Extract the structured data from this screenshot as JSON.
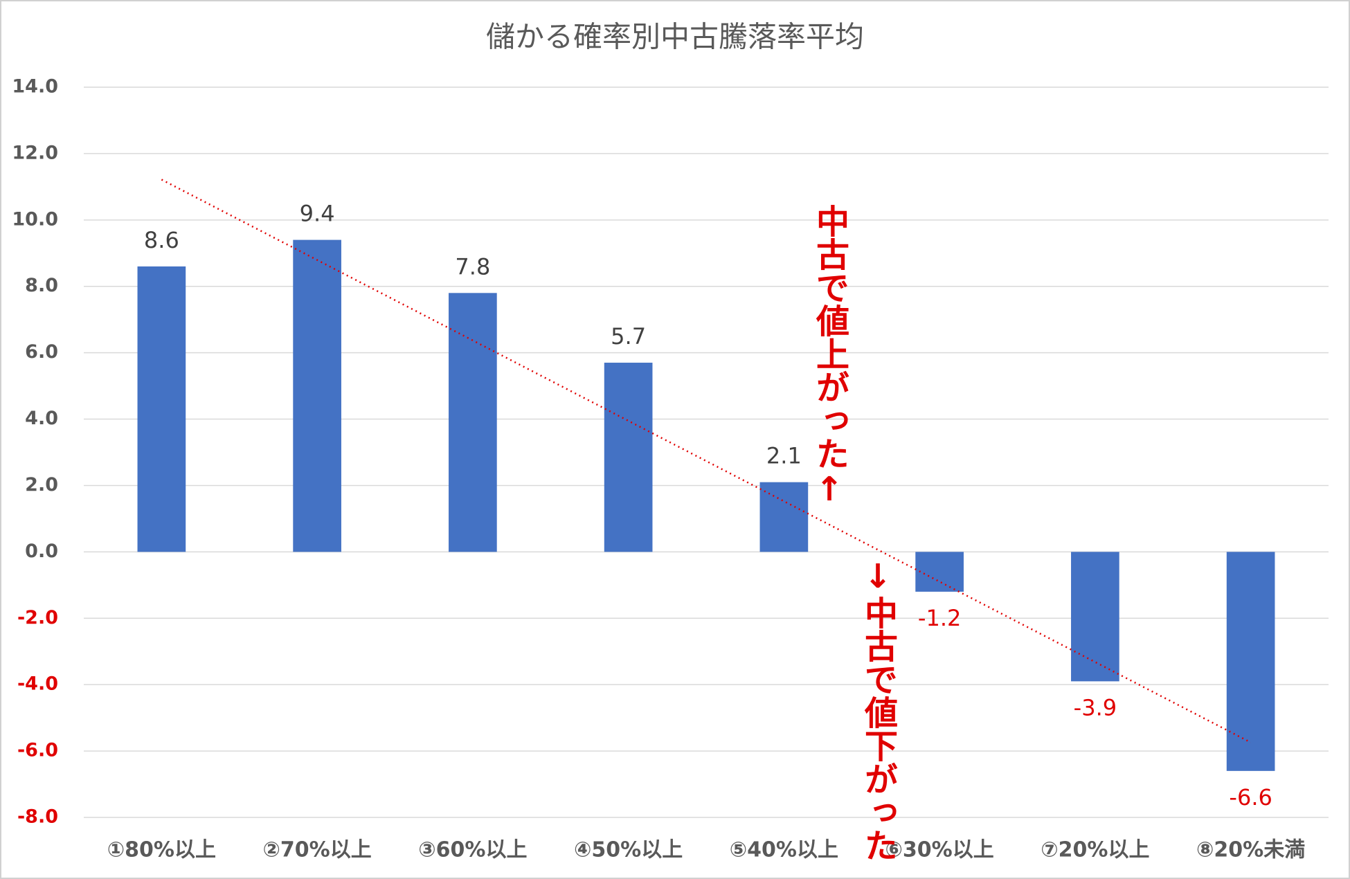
{
  "chart_data": {
    "type": "bar",
    "title": "儲かる確率別中古騰落率平均",
    "categories": [
      "①80%以上",
      "②70%以上",
      "③60%以上",
      "④50%以上",
      "⑤40%以上",
      "⑥30%以上",
      "⑦20%以上",
      "⑧20%未満"
    ],
    "values": [
      8.6,
      9.4,
      7.8,
      5.7,
      2.1,
      -1.2,
      -3.9,
      -6.6
    ],
    "color": "#4472c4",
    "negative_label_color": "#e00000",
    "ylim": [
      -8,
      14
    ],
    "yticks": [
      {
        "value": -8,
        "label": "-8.0"
      },
      {
        "value": -6,
        "label": "-6.0"
      },
      {
        "value": -4,
        "label": "-4.0"
      },
      {
        "value": -2,
        "label": "-2.0"
      },
      {
        "value": 0,
        "label": "0.0"
      },
      {
        "value": 2,
        "label": "2.0"
      },
      {
        "value": 4,
        "label": "4.0"
      },
      {
        "value": 6,
        "label": "6.0"
      },
      {
        "value": 8,
        "label": "8.0"
      },
      {
        "value": 10,
        "label": "10.0"
      },
      {
        "value": 12,
        "label": "12.0"
      },
      {
        "value": 14,
        "label": "14.0"
      }
    ],
    "grid": true,
    "trendline": {
      "type": "linear",
      "color": "#e00000"
    },
    "annotations": [
      "中古で値上がった↑",
      "↓中古で値下がった"
    ]
  }
}
